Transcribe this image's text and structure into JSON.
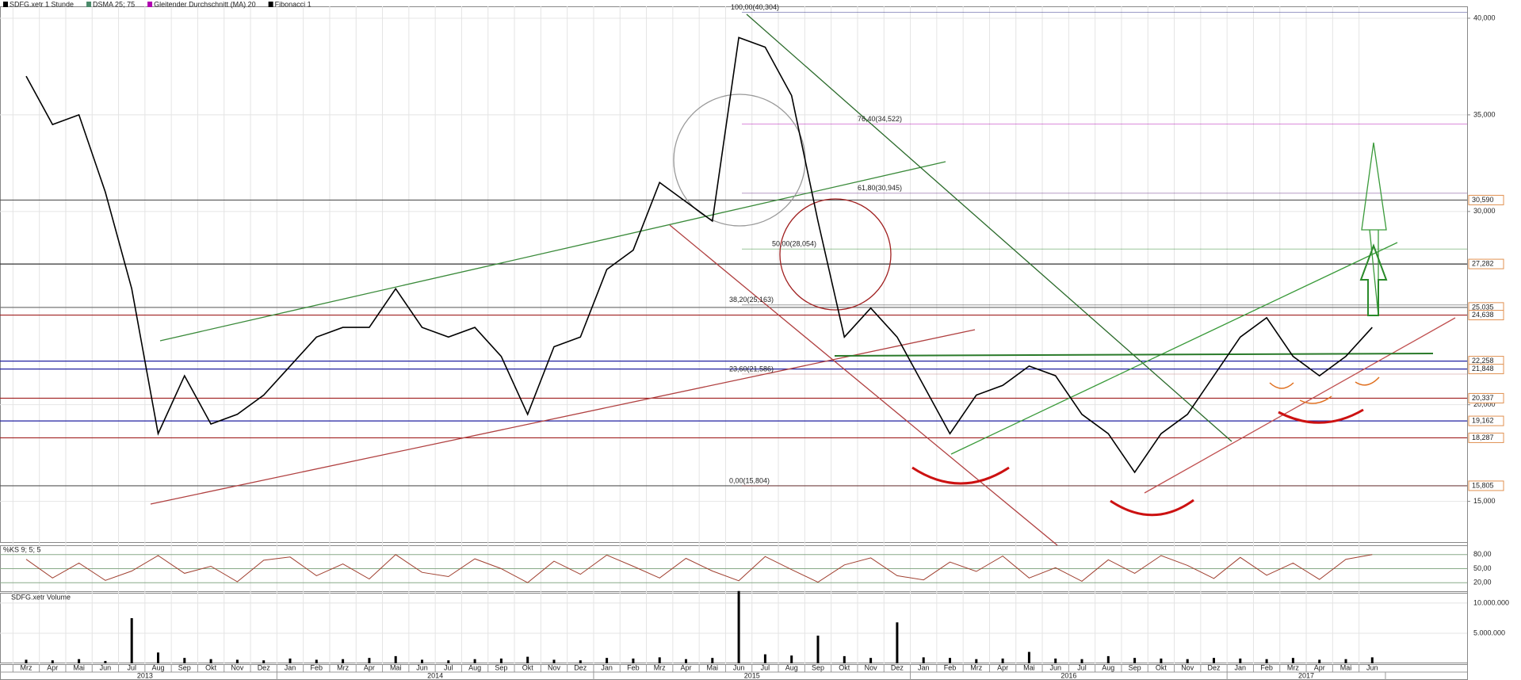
{
  "chart_data": {
    "type": "line",
    "legend": [
      "SDFG.xetr 1 Stunde",
      "DSMA 25; 75",
      "Gleitender Durchschnitt (MA) 20",
      "Fibonacci 1"
    ],
    "legend_colors": [
      "#000000",
      "#4a8a6a",
      "#b000b0",
      "#000000"
    ],
    "categories": [
      "Mrz",
      "Apr",
      "Mai",
      "Jun",
      "Jul",
      "Aug",
      "Sep",
      "Okt",
      "Nov",
      "Dez",
      "Jan",
      "Feb",
      "Mrz",
      "Apr",
      "Mai",
      "Jun",
      "Jul",
      "Aug",
      "Sep",
      "Okt",
      "Nov",
      "Dez",
      "Jan",
      "Feb",
      "Mrz",
      "Apr",
      "Mai",
      "Jun",
      "Jul",
      "Aug",
      "Sep",
      "Okt",
      "Nov",
      "Dez",
      "Jan",
      "Feb",
      "Mrz",
      "Apr",
      "Mai",
      "Jun",
      "Jul",
      "Aug",
      "Sep",
      "Okt",
      "Nov",
      "Dez",
      "Jan",
      "Feb",
      "Mrz",
      "Apr",
      "Mai",
      "Jun"
    ],
    "years": [
      "2013",
      "2014",
      "2015",
      "2016",
      "2017"
    ],
    "series": [
      {
        "name": "SDFG.xetr 1 Stunde",
        "color": "#000000",
        "values": [
          37000,
          34500,
          35000,
          31000,
          26000,
          18500,
          21500,
          19000,
          19500,
          20500,
          22000,
          23500,
          24000,
          24000,
          26000,
          24000,
          23500,
          24000,
          22500,
          19500,
          23000,
          23500,
          27000,
          28000,
          31500,
          30500,
          29500,
          39000,
          38500,
          36000,
          29500,
          23500,
          25000,
          23500,
          21000,
          18500,
          20500,
          21000,
          22000,
          21500,
          19500,
          18500,
          16500,
          18500,
          19500,
          21500,
          23500,
          24500,
          22500,
          21500,
          22500,
          24000
        ]
      }
    ],
    "ylim": [
      12850,
      40450
    ],
    "yticks": [
      {
        "value": 15000,
        "label": "15,000"
      },
      {
        "value": 20000,
        "label": "20,000"
      },
      {
        "value": 30000,
        "label": "30,000"
      },
      {
        "value": 35000,
        "label": "35,000"
      },
      {
        "value": 40000,
        "label": "40,000"
      }
    ],
    "levels": [
      {
        "value": 30590,
        "label": "30,590",
        "color": "#555555"
      },
      {
        "value": 27282,
        "label": "27,282",
        "color": "#333333"
      },
      {
        "value": 25035,
        "label": "25,035",
        "color": "#777777"
      },
      {
        "value": 24638,
        "label": "24,638",
        "color": "#a02020"
      },
      {
        "value": 22258,
        "label": "22,258",
        "color": "#2020a0"
      },
      {
        "value": 21848,
        "label": "21,848",
        "color": "#2020a0"
      },
      {
        "value": 20337,
        "label": "20,337",
        "color": "#a02020"
      },
      {
        "value": 19162,
        "label": "19,162",
        "color": "#2020a0"
      },
      {
        "value": 18287,
        "label": "18,287",
        "color": "#a02020"
      },
      {
        "value": 15805,
        "label": "15,805",
        "color": "#555555"
      }
    ],
    "fibonacci": [
      {
        "value": 40304,
        "label": "100,00(40,304)",
        "color": "#202080"
      },
      {
        "value": 34522,
        "label": "76,40(34,522)",
        "color": "#b000b0"
      },
      {
        "value": 30945,
        "label": "61,80(30,945)",
        "color": "#602080"
      },
      {
        "value": 28054,
        "label": "50,00(28,054)",
        "color": "#208020"
      },
      {
        "value": 25163,
        "label": "38,20(25,163)",
        "color": "#202020"
      },
      {
        "value": 21586,
        "label": "23,60(21,586)",
        "color": "#c08080"
      },
      {
        "value": 15804,
        "label": "0,00(15,804)",
        "color": "#a02020"
      }
    ],
    "oscillator": {
      "name": "%KS 9; 5; 5",
      "color": "#a04030",
      "values": [
        70,
        30,
        62,
        25,
        45,
        78,
        40,
        55,
        22,
        68,
        75,
        35,
        60,
        28,
        80,
        42,
        33,
        71,
        50,
        20,
        66,
        38,
        79,
        55,
        30,
        72,
        45,
        24,
        76,
        48,
        21,
        58,
        73,
        35,
        26,
        64,
        44,
        77,
        30,
        52,
        23,
        69,
        40,
        78,
        57,
        29,
        74,
        36,
        62,
        27,
        70,
        80
      ],
      "ylim": [
        0,
        100
      ],
      "yticks": [
        {
          "value": 20,
          "label": "20,00"
        },
        {
          "value": 50,
          "label": "50,00"
        },
        {
          "value": 80,
          "label": "80,00"
        }
      ]
    },
    "volume": {
      "name": "SDFG.xetr Volume",
      "color": "#000000",
      "values": [
        600000,
        500000,
        700000,
        400000,
        7500000,
        1800000,
        900000,
        700000,
        600000,
        500000,
        800000,
        600000,
        700000,
        900000,
        1200000,
        600000,
        500000,
        700000,
        800000,
        1100000,
        600000,
        500000,
        900000,
        800000,
        1000000,
        700000,
        900000,
        12000000,
        1500000,
        1300000,
        4600000,
        1200000,
        900000,
        6800000,
        1000000,
        900000,
        700000,
        800000,
        1900000,
        800000,
        700000,
        1200000,
        900000,
        800000,
        700000,
        900000,
        800000,
        700000,
        900000,
        600000,
        700000,
        1000000
      ],
      "ylim": [
        0,
        11700000
      ],
      "yticks": [
        {
          "value": 5000000,
          "label": "5.000.000"
        },
        {
          "value": 10000000,
          "label": "10.000.000"
        }
      ]
    }
  }
}
